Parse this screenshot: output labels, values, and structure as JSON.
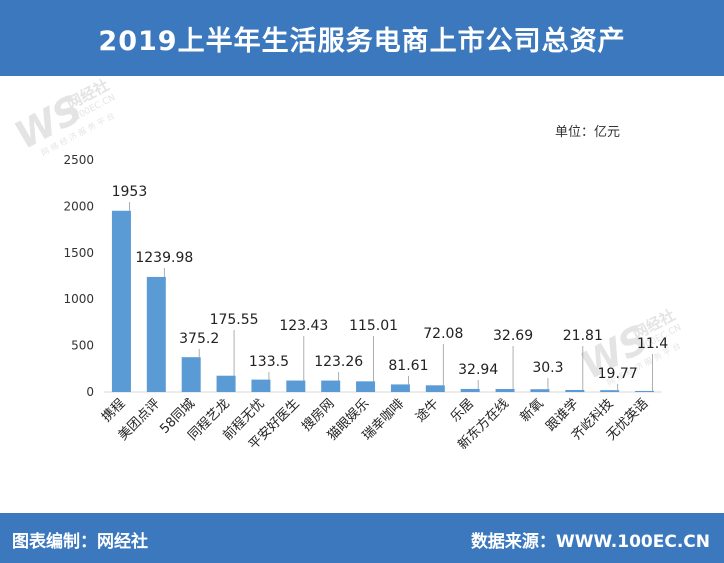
{
  "title": "2019上半年生活服务电商上市公司总资产",
  "footer": {
    "left_label": "图表编制：",
    "left_value": "网经社",
    "right_label": "数据来源：",
    "right_value": "WWW.100EC.CN"
  },
  "watermark": {
    "logo": "WS",
    "name": "网经社",
    "url": "100EC.CN",
    "tagline": "网 络 经 济 服 务 平 台"
  },
  "colors": {
    "header": "#3b78be",
    "bar": "#5b9bd5",
    "axis": "#d9d9d9"
  },
  "chart_data": {
    "type": "bar",
    "unit_label": "单位：亿元",
    "categories": [
      "携程",
      "美团点评",
      "58同城",
      "同程艺龙",
      "前程无忧",
      "平安好医生",
      "搜房网",
      "猫眼娱乐",
      "瑞幸咖啡",
      "途牛",
      "乐居",
      "新东方在线",
      "新氧",
      "跟谁学",
      "齐屹科技",
      "无忧英语"
    ],
    "values": [
      1953,
      1239.98,
      375.2,
      175.55,
      133.5,
      123.43,
      123.26,
      115.01,
      81.61,
      72.08,
      32.94,
      32.69,
      30.3,
      21.81,
      19.77,
      11.4
    ],
    "value_labels": [
      "1953",
      "1239.98",
      "375.2",
      "175.55",
      "133.5",
      "123.43",
      "123.26",
      "115.01",
      "81.61",
      "72.08",
      "32.94",
      "32.69",
      "30.3",
      "21.81",
      "19.77",
      "11.4"
    ],
    "yticks": [
      0,
      500,
      1000,
      1500,
      2000,
      2500
    ],
    "ylim": [
      0,
      2500
    ],
    "grid": false
  }
}
